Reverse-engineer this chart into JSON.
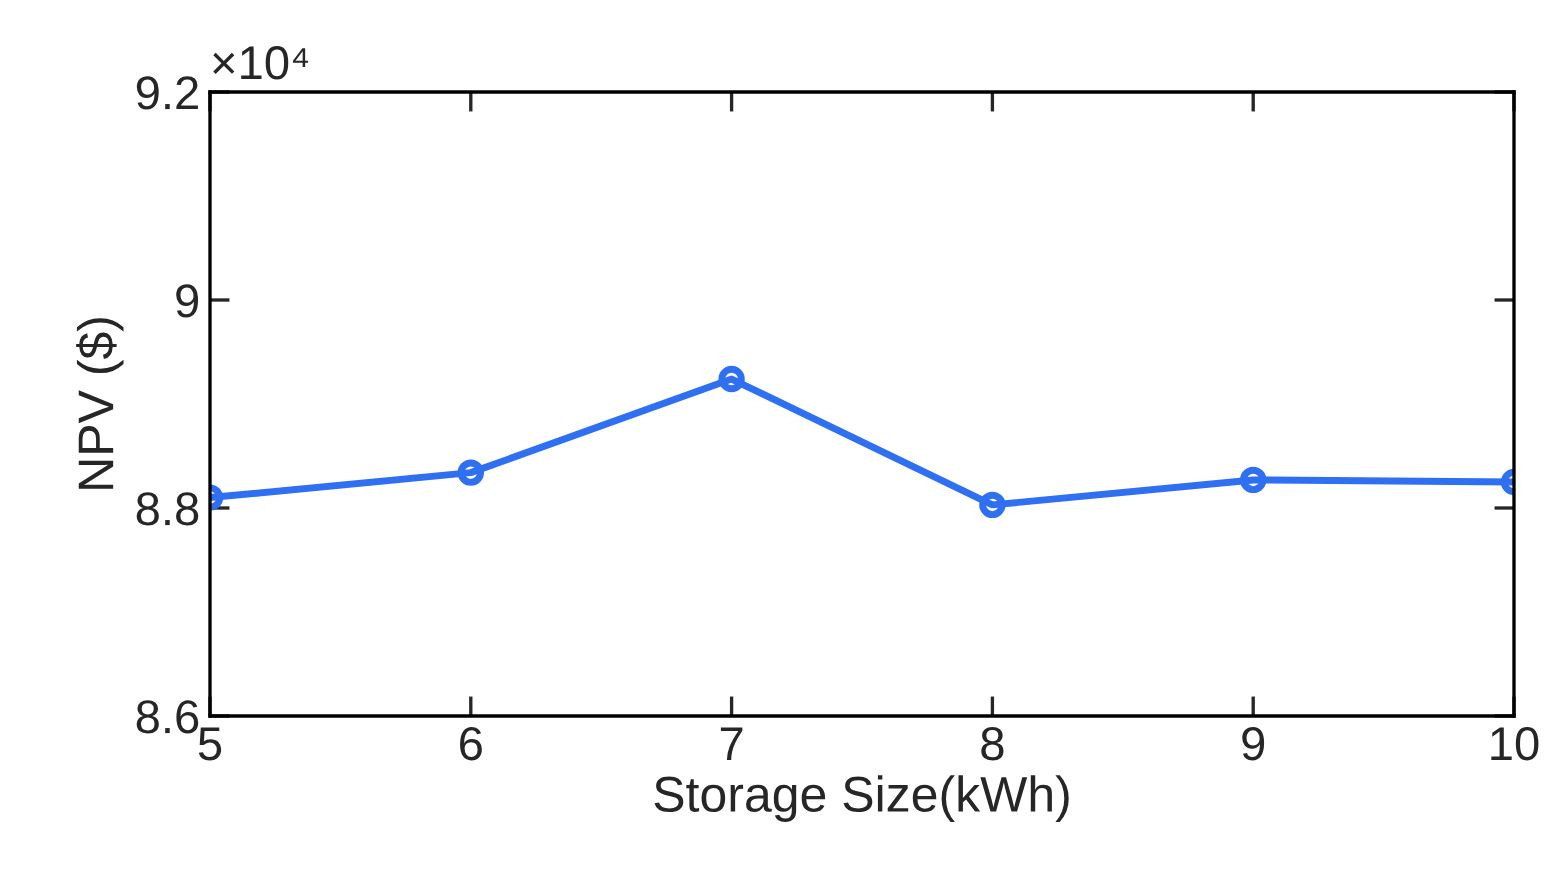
{
  "chart_data": {
    "type": "line",
    "xlabel": "Storage Size(kWh)",
    "ylabel": "NPV ($)",
    "annotations": [
      "×10⁴"
    ],
    "x": [
      5,
      6,
      7,
      8,
      9,
      10
    ],
    "series": [
      {
        "color": "#2f6ff2",
        "values": [
          8.81,
          8.834,
          8.924,
          8.803,
          8.827,
          8.825
        ]
      }
    ],
    "xlim": [
      5,
      10
    ],
    "xticks": [
      5,
      6,
      7,
      8,
      9,
      10
    ],
    "ylim": [
      8.6,
      9.2
    ],
    "yticks": [
      8.6,
      8.8,
      9,
      9.2
    ],
    "marker": "circle",
    "line_style": "solid",
    "grid": false
  }
}
